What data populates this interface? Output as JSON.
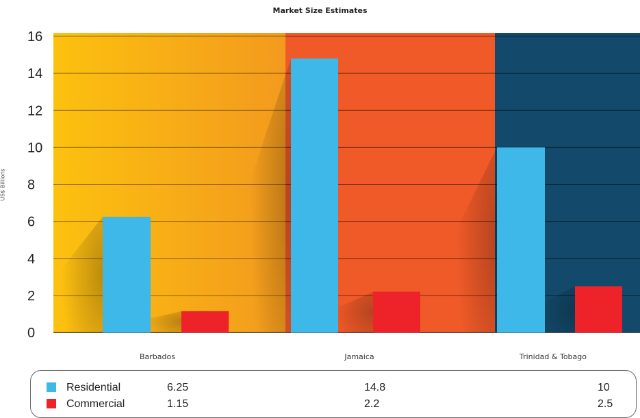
{
  "chart_data": {
    "type": "bar",
    "title": "Market Size Estimates",
    "ylabel": "US$ Billions",
    "xlabel": "",
    "ylim": [
      0,
      16
    ],
    "yticks": [
      0,
      2,
      4,
      6,
      8,
      10,
      12,
      14,
      16
    ],
    "grid": true,
    "categories": [
      "Barbados",
      "Jamaica",
      "Trinidad & Tobago"
    ],
    "category_backgrounds": [
      "#f7b01b",
      "#f05a28",
      "#134a6b"
    ],
    "series": [
      {
        "name": "Residential",
        "color": "#3db8e8",
        "values": [
          6.25,
          14.8,
          10
        ]
      },
      {
        "name": "Commercial",
        "color": "#ee2329",
        "values": [
          1.15,
          2.2,
          2.5
        ]
      }
    ],
    "table_values": [
      [
        "6.25",
        "14.8",
        "10"
      ],
      [
        "1.15",
        "2.2",
        "2.5"
      ]
    ],
    "legend_placement": "bottom"
  }
}
